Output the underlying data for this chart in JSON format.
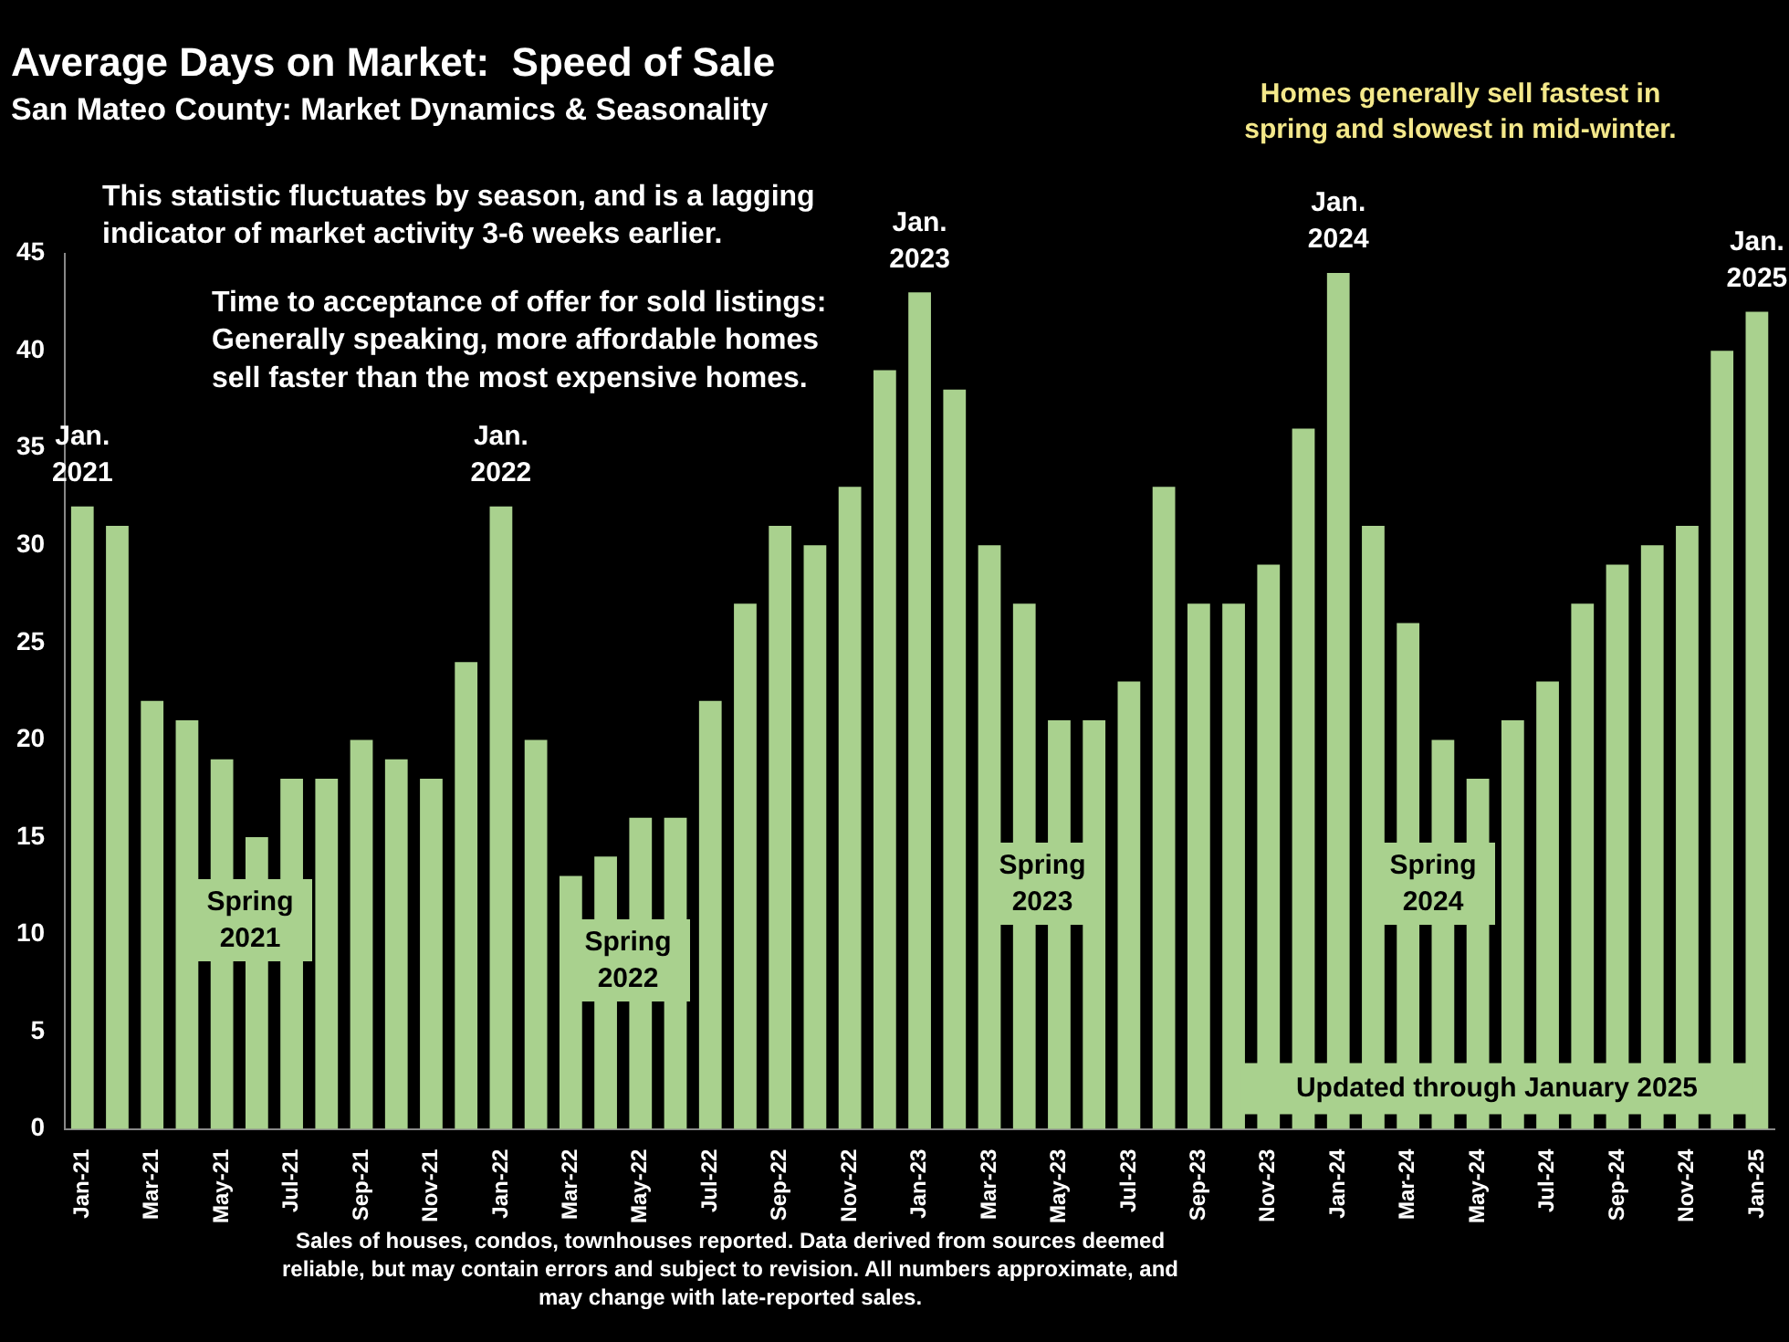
{
  "chart_data": {
    "type": "bar",
    "title": "Average Days on Market:  Speed of Sale",
    "subtitle": "San Mateo County: Market Dynamics & Seasonality",
    "categories": [
      "Jan-21",
      null,
      "Mar-21",
      null,
      "May-21",
      null,
      "Jul-21",
      null,
      "Sep-21",
      null,
      "Nov-21",
      null,
      "Jan-22",
      null,
      "Mar-22",
      null,
      "May-22",
      null,
      "Jul-22",
      null,
      "Sep-22",
      null,
      "Nov-22",
      null,
      "Jan-23",
      null,
      "Mar-23",
      null,
      "May-23",
      null,
      "Jul-23",
      null,
      "Sep-23",
      null,
      "Nov-23",
      null,
      "Jan-24",
      null,
      "Mar-24",
      null,
      "May-24",
      null,
      "Jul-24",
      null,
      "Sep-24",
      null,
      "Nov-24",
      null,
      "Jan-25"
    ],
    "values": [
      32,
      31,
      22,
      21,
      19,
      15,
      18,
      18,
      20,
      19,
      18,
      24,
      32,
      20,
      13,
      14,
      16,
      16,
      22,
      27,
      31,
      30,
      33,
      39,
      43,
      38,
      30,
      27,
      21,
      21,
      23,
      33,
      27,
      27,
      29,
      36,
      44,
      31,
      26,
      20,
      18,
      21,
      23,
      27,
      29,
      30,
      31,
      40,
      42
    ],
    "color": "#a9d18e",
    "ylim": [
      0,
      45
    ],
    "yticks": [
      0,
      5,
      10,
      15,
      20,
      25,
      30,
      35,
      40,
      45
    ],
    "grid": false,
    "legend": false,
    "annotations": [
      "This statistic fluctuates by season, and is a lagging indicator of market activity 3-6 weeks earlier.",
      "Time to acceptance of offer for sold listings: Generally speaking, more affordable homes sell faster than the most expensive homes.",
      "Homes generally sell fastest in spring and slowest in mid-winter.",
      "Updated through January 2025",
      "Sales of houses, condos, townhouses reported. Data derived from sources deemed reliable, but may contain errors and subject to revision. All numbers approximate, and may change with late-reported sales.",
      {
        "text": "Jan. 2021",
        "x": "Jan-21",
        "y": 32
      },
      {
        "text": "Jan. 2022",
        "x": "Jan-22",
        "y": 32
      },
      {
        "text": "Jan. 2023",
        "x": "Jan-23",
        "y": 43
      },
      {
        "text": "Jan. 2024",
        "x": "Jan-24",
        "y": 44
      },
      {
        "text": "Jan. 2025",
        "x": "Jan-25",
        "y": 42
      },
      "Spring 2021",
      "Spring 2022",
      "Spring 2023",
      "Spring 2024"
    ]
  }
}
